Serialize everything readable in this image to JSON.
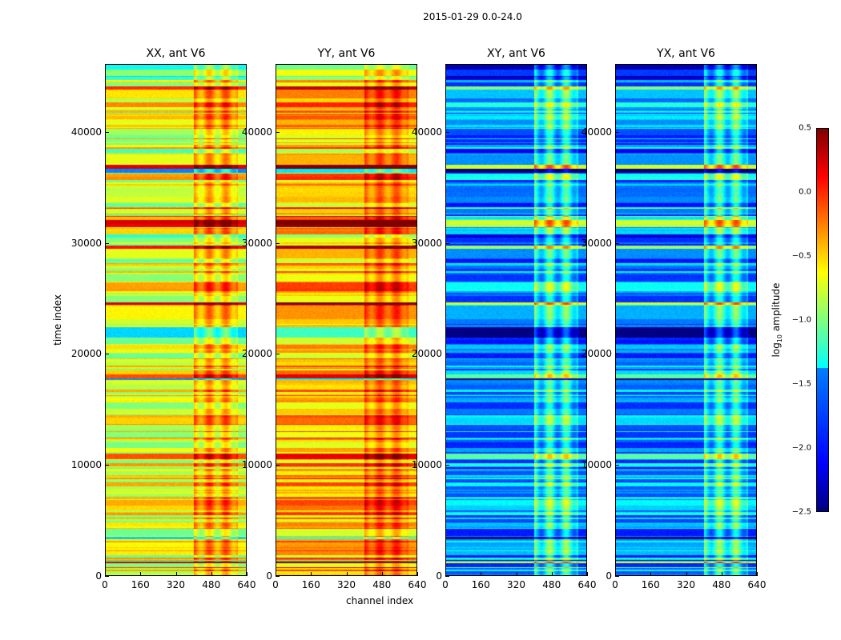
{
  "figure_title": "2015-01-29 0.0-24.0",
  "chart_data": {
    "type": "heatmap",
    "title": "2015-01-29 0.0-24.0",
    "xlabel": "channel index",
    "ylabel": "time index",
    "xlim": [
      0,
      640
    ],
    "ylim": [
      0,
      46100
    ],
    "xticks": [
      "0",
      "160",
      "320",
      "480",
      "640"
    ],
    "yticks": [
      "0",
      "10000",
      "20000",
      "30000",
      "40000"
    ],
    "panels": [
      {
        "title": "XX, ant V6",
        "typical_log10_amplitude": -0.7,
        "band_480_600_log10_amplitude": -0.2
      },
      {
        "title": "YY, ant V6",
        "typical_log10_amplitude": -0.4,
        "band_480_600_log10_amplitude": 0.0
      },
      {
        "title": "XY, ant V6",
        "typical_log10_amplitude": -1.7,
        "band_480_600_log10_amplitude": -1.0
      },
      {
        "title": "YX, ant V6",
        "typical_log10_amplitude": -1.7,
        "band_480_600_log10_amplitude": -1.0
      }
    ],
    "colorbar": {
      "label": "log10 amplitude",
      "label_base": "log",
      "label_sub": "10",
      "label_rest": " amplitude",
      "range": [
        -2.5,
        0.5
      ],
      "ticks": [
        "0.5",
        "0.0",
        "−0.5",
        "−1.0",
        "−1.5",
        "−2.0",
        "−2.5"
      ],
      "colormap": "jet"
    }
  }
}
